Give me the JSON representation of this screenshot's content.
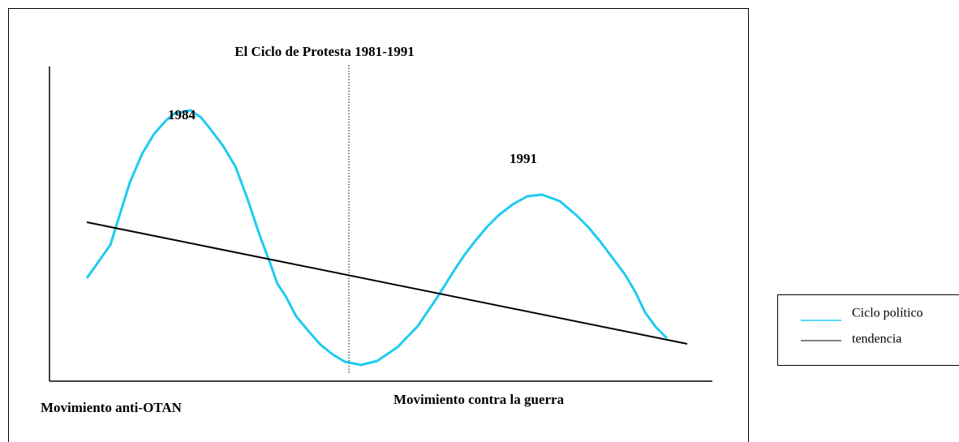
{
  "title": "El Ciclo de Protesta 1981-1991",
  "peaks": [
    "1984",
    "1991"
  ],
  "movements": [
    "Movimiento anti-OTAN",
    "Movimiento contra la guerra"
  ],
  "legend": [
    "Ciclo político",
    "tendencia"
  ]
}
